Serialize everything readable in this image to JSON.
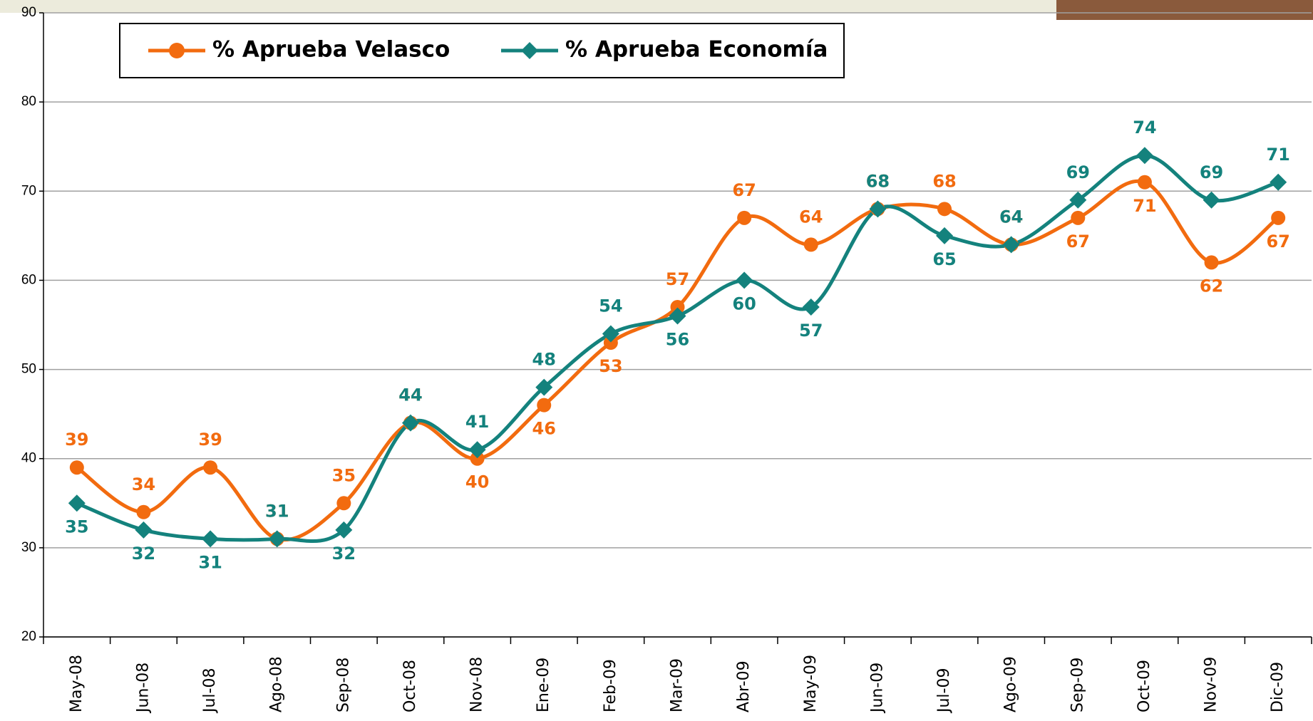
{
  "chart_data": {
    "type": "line",
    "categories": [
      "May-08",
      "Jun-08",
      "Jul-08",
      "Ago-08",
      "Sep-08",
      "Oct-08",
      "Nov-08",
      "Ene-09",
      "Feb-09",
      "Mar-09",
      "Abr-09",
      "May-09",
      "Jun-09",
      "Jul-09",
      "Ago-09",
      "Sep-09",
      "Oct-09",
      "Nov-09",
      "Dic-09"
    ],
    "series": [
      {
        "name": "% Aprueba Velasco",
        "color": "#f26b0f",
        "marker": "circle",
        "values": [
          39,
          34,
          39,
          31,
          35,
          44,
          40,
          46,
          53,
          57,
          67,
          64,
          68,
          68,
          64,
          67,
          71,
          62,
          67
        ]
      },
      {
        "name": "% Aprueba Economía",
        "color": "#14827d",
        "marker": "diamond",
        "values": [
          35,
          32,
          31,
          31,
          32,
          44,
          41,
          48,
          54,
          56,
          60,
          57,
          68,
          65,
          64,
          69,
          74,
          69,
          71
        ]
      }
    ],
    "ylim": [
      20,
      90
    ],
    "yticks": [
      20,
      30,
      40,
      50,
      60,
      70,
      80,
      90
    ],
    "grid": true
  }
}
